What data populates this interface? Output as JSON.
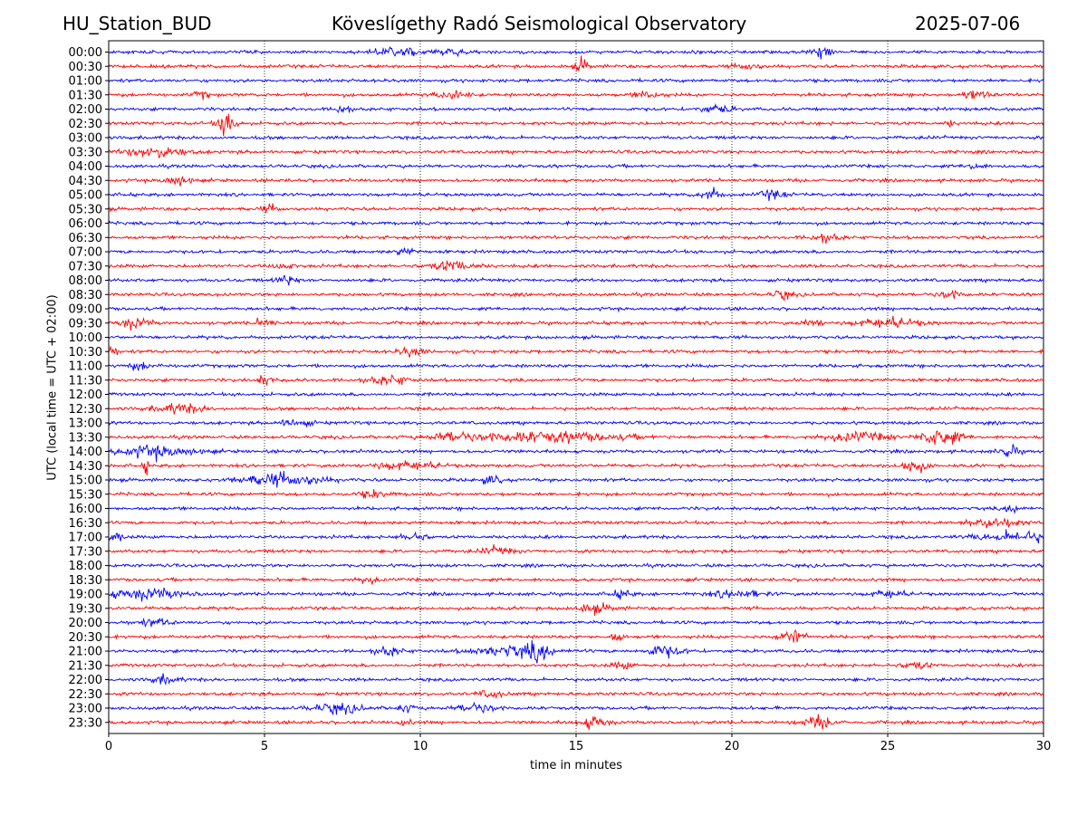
{
  "header": {
    "station": "HU_Station_BUD",
    "observatory": "Köveslígethy Radó Seismological Observatory",
    "date": "2025-07-06"
  },
  "chart_data": {
    "type": "line",
    "title": "Köveslígethy Radó Seismological Observatory",
    "xlabel": "time in minutes",
    "ylabel": "UTC (local time = UTC + 02:00)",
    "xlim": [
      0,
      30
    ],
    "xticks": [
      "0",
      "5",
      "10",
      "15",
      "20",
      "25",
      "30"
    ],
    "grid": "vertical dotted lines at 5 minute intervals",
    "trace_colors": [
      "#0000ff",
      "#ff0000"
    ],
    "traces": [
      {
        "label": "00:00",
        "events": [
          [
            9.3,
            2.0,
            0.6
          ],
          [
            11.0,
            1.2,
            0.4
          ],
          [
            22.9,
            2.2,
            0.25
          ]
        ]
      },
      {
        "label": "00:30",
        "events": [
          [
            15.2,
            2.6,
            0.2
          ],
          [
            20.5,
            1.1,
            0.4
          ]
        ]
      },
      {
        "label": "01:00",
        "events": []
      },
      {
        "label": "01:30",
        "events": [
          [
            3.0,
            1.2,
            0.3
          ],
          [
            11.0,
            1.4,
            0.5
          ],
          [
            17.3,
            1.4,
            0.4
          ],
          [
            27.8,
            1.6,
            0.4
          ]
        ]
      },
      {
        "label": "02:00",
        "events": [
          [
            7.5,
            1.8,
            0.2
          ],
          [
            19.5,
            1.4,
            0.5
          ]
        ]
      },
      {
        "label": "02:30",
        "events": [
          [
            3.8,
            4.2,
            0.3
          ],
          [
            27.0,
            1.4,
            0.1
          ]
        ]
      },
      {
        "label": "03:00",
        "events": []
      },
      {
        "label": "03:30",
        "events": [
          [
            1.5,
            2.0,
            0.9
          ]
        ]
      },
      {
        "label": "04:00",
        "events": [
          [
            27.8,
            1.2,
            0.3
          ]
        ]
      },
      {
        "label": "04:30",
        "events": [
          [
            2.2,
            1.8,
            0.4
          ]
        ]
      },
      {
        "label": "05:00",
        "events": [
          [
            19.3,
            2.4,
            0.3
          ],
          [
            21.3,
            1.5,
            0.4
          ]
        ]
      },
      {
        "label": "05:30",
        "events": [
          [
            5.2,
            1.2,
            0.3
          ]
        ]
      },
      {
        "label": "06:00",
        "events": []
      },
      {
        "label": "06:30",
        "events": [
          [
            23.0,
            1.2,
            0.5
          ]
        ]
      },
      {
        "label": "07:00",
        "events": [
          [
            9.5,
            1.3,
            0.3
          ]
        ]
      },
      {
        "label": "07:30",
        "events": [
          [
            11.0,
            1.8,
            0.7
          ],
          [
            5.6,
            1.2,
            0.3
          ]
        ]
      },
      {
        "label": "08:00",
        "events": [
          [
            5.7,
            1.6,
            0.3
          ]
        ]
      },
      {
        "label": "08:30",
        "events": [
          [
            21.6,
            1.6,
            0.3
          ],
          [
            27.0,
            1.3,
            0.4
          ]
        ]
      },
      {
        "label": "09:00",
        "events": []
      },
      {
        "label": "09:30",
        "events": [
          [
            0.8,
            2.0,
            0.5
          ],
          [
            5.0,
            1.5,
            0.3
          ],
          [
            25.0,
            1.6,
            1.0
          ],
          [
            22.6,
            1.4,
            0.3
          ]
        ]
      },
      {
        "label": "10:00",
        "events": []
      },
      {
        "label": "10:30",
        "events": [
          [
            9.7,
            1.6,
            0.4
          ],
          [
            0.1,
            1.4,
            0.2
          ]
        ]
      },
      {
        "label": "11:00",
        "events": [
          [
            1.0,
            1.2,
            0.4
          ]
        ]
      },
      {
        "label": "11:30",
        "events": [
          [
            5.0,
            1.6,
            0.3
          ],
          [
            9.0,
            1.6,
            0.6
          ]
        ]
      },
      {
        "label": "12:00",
        "events": []
      },
      {
        "label": "12:30",
        "events": [
          [
            2.3,
            1.5,
            0.8
          ]
        ]
      },
      {
        "label": "13:00",
        "events": [
          [
            6.0,
            1.4,
            0.5
          ]
        ]
      },
      {
        "label": "13:30",
        "events": [
          [
            14.0,
            1.8,
            2.5
          ],
          [
            11.0,
            1.4,
            0.6
          ],
          [
            26.7,
            3.4,
            0.6
          ],
          [
            24.0,
            1.6,
            1.0
          ]
        ]
      },
      {
        "label": "14:00",
        "events": [
          [
            1.5,
            2.0,
            1.2
          ],
          [
            28.9,
            2.0,
            0.3
          ]
        ]
      },
      {
        "label": "14:30",
        "events": [
          [
            1.2,
            3.0,
            0.08
          ],
          [
            25.8,
            2.6,
            0.4
          ],
          [
            9.5,
            1.4,
            1.0
          ]
        ]
      },
      {
        "label": "15:00",
        "events": [
          [
            5.5,
            2.2,
            1.3
          ],
          [
            12.3,
            1.5,
            0.3
          ]
        ]
      },
      {
        "label": "15:30",
        "events": [
          [
            8.5,
            1.3,
            0.5
          ]
        ]
      },
      {
        "label": "16:00",
        "events": [
          [
            29.0,
            1.3,
            0.3
          ]
        ]
      },
      {
        "label": "16:30",
        "events": [
          [
            28.4,
            1.8,
            0.8
          ]
        ]
      },
      {
        "label": "17:00",
        "events": [
          [
            0.2,
            2.2,
            0.2
          ],
          [
            9.8,
            1.5,
            0.4
          ],
          [
            29.2,
            1.8,
            1.2
          ]
        ]
      },
      {
        "label": "17:30",
        "events": [
          [
            12.5,
            1.3,
            0.5
          ]
        ]
      },
      {
        "label": "18:00",
        "events": []
      },
      {
        "label": "18:30",
        "events": [
          [
            8.3,
            1.3,
            0.3
          ]
        ]
      },
      {
        "label": "19:00",
        "events": [
          [
            1.2,
            2.0,
            1.2
          ],
          [
            16.5,
            1.4,
            0.3
          ],
          [
            20.2,
            1.4,
            0.8
          ],
          [
            25.0,
            1.3,
            0.5
          ]
        ]
      },
      {
        "label": "19:30",
        "events": [
          [
            15.6,
            1.4,
            0.6
          ]
        ]
      },
      {
        "label": "20:00",
        "events": [
          [
            1.5,
            1.2,
            0.5
          ]
        ]
      },
      {
        "label": "20:30",
        "events": [
          [
            21.9,
            3.0,
            0.4
          ],
          [
            16.3,
            1.6,
            0.2
          ]
        ]
      },
      {
        "label": "21:00",
        "events": [
          [
            13.0,
            2.0,
            1.2
          ],
          [
            13.8,
            3.0,
            0.3
          ],
          [
            17.8,
            2.0,
            0.6
          ],
          [
            9.0,
            1.6,
            0.4
          ]
        ]
      },
      {
        "label": "21:30",
        "events": [
          [
            25.9,
            1.5,
            0.4
          ],
          [
            16.5,
            1.3,
            0.3
          ]
        ]
      },
      {
        "label": "22:00",
        "events": [
          [
            1.8,
            1.4,
            0.4
          ]
        ]
      },
      {
        "label": "22:30",
        "events": [
          [
            12.3,
            1.3,
            0.4
          ]
        ]
      },
      {
        "label": "23:00",
        "events": [
          [
            7.3,
            1.6,
            0.8
          ],
          [
            11.8,
            1.6,
            0.6
          ],
          [
            9.5,
            1.3,
            0.3
          ]
        ]
      },
      {
        "label": "23:30",
        "events": [
          [
            15.6,
            2.4,
            0.4
          ],
          [
            22.8,
            2.0,
            0.5
          ],
          [
            9.5,
            1.3,
            0.2
          ]
        ]
      }
    ]
  }
}
